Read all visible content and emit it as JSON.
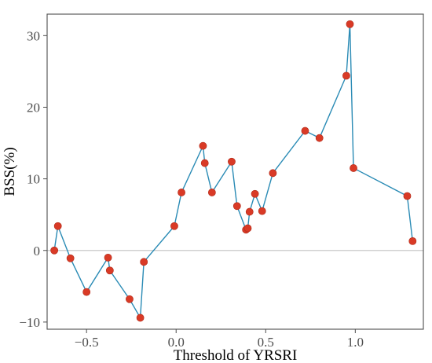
{
  "chart_data": {
    "type": "line",
    "title": "",
    "xlabel": "Threshold of YRSRI",
    "ylabel": "BSS(%)",
    "xlim": [
      -0.72,
      1.38
    ],
    "ylim": [
      -11,
      33
    ],
    "x_ticks": [
      -0.5,
      0.0,
      0.5,
      1.0
    ],
    "x_tick_labels": [
      "−0.5",
      "0.0",
      "0.5",
      "1.0"
    ],
    "y_ticks": [
      -10,
      0,
      10,
      20,
      30
    ],
    "y_tick_labels": [
      "−10",
      "0",
      "10",
      "20",
      "30"
    ],
    "grid": false,
    "reference_line_y": 0,
    "colors": {
      "line": "#2a8bb5",
      "point": "#d93a26",
      "reference": "#c8c8c8",
      "frame": "#4d4d4d"
    },
    "series": [
      {
        "points": [
          {
            "x": -0.68,
            "y": 0.0
          },
          {
            "x": -0.66,
            "y": 3.4
          },
          {
            "x": -0.59,
            "y": -1.1
          },
          {
            "x": -0.5,
            "y": -5.8
          },
          {
            "x": -0.38,
            "y": -1.0
          },
          {
            "x": -0.37,
            "y": -2.8
          },
          {
            "x": -0.26,
            "y": -6.8
          },
          {
            "x": -0.2,
            "y": -9.4
          },
          {
            "x": -0.18,
            "y": -1.6
          },
          {
            "x": -0.01,
            "y": 3.4
          },
          {
            "x": 0.03,
            "y": 8.1
          },
          {
            "x": 0.15,
            "y": 14.6
          },
          {
            "x": 0.16,
            "y": 12.2
          },
          {
            "x": 0.2,
            "y": 8.1
          },
          {
            "x": 0.31,
            "y": 12.4
          },
          {
            "x": 0.34,
            "y": 6.2
          },
          {
            "x": 0.39,
            "y": 2.9
          },
          {
            "x": 0.4,
            "y": 3.1
          },
          {
            "x": 0.41,
            "y": 5.4
          },
          {
            "x": 0.44,
            "y": 7.9
          },
          {
            "x": 0.48,
            "y": 5.5
          },
          {
            "x": 0.54,
            "y": 10.8
          },
          {
            "x": 0.72,
            "y": 16.7
          },
          {
            "x": 0.8,
            "y": 15.7
          },
          {
            "x": 0.95,
            "y": 24.4
          },
          {
            "x": 0.97,
            "y": 31.6
          },
          {
            "x": 0.99,
            "y": 11.5
          },
          {
            "x": 1.29,
            "y": 7.6
          },
          {
            "x": 1.32,
            "y": 1.3
          }
        ]
      }
    ]
  }
}
